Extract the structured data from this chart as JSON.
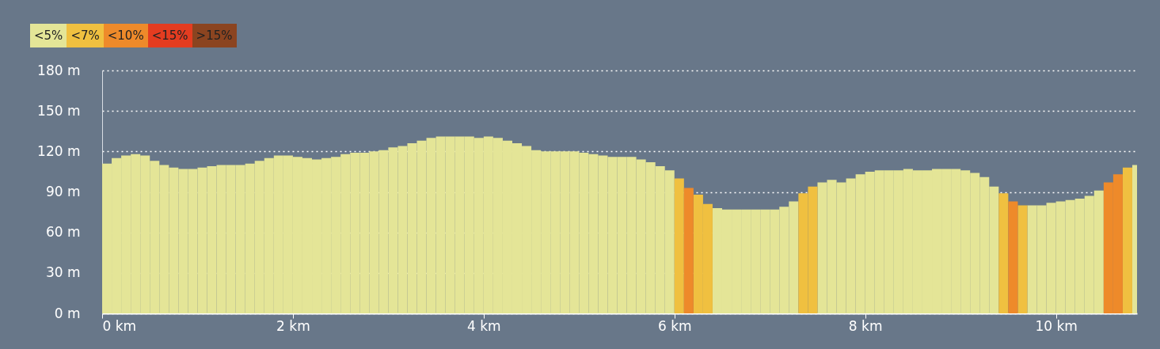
{
  "chart_data": {
    "type": "bar",
    "legend": "top left",
    "grid": "y",
    "xlim": [
      0,
      10.85
    ],
    "xticks": [
      {
        "value": 0,
        "label": "0 km"
      },
      {
        "value": 2,
        "label": "2 km"
      },
      {
        "value": 4,
        "label": "4 km"
      },
      {
        "value": 6,
        "label": "6 km"
      },
      {
        "value": 8,
        "label": "8 km"
      },
      {
        "value": 10,
        "label": "10 km"
      }
    ],
    "ylim": [
      0,
      180
    ],
    "yticks": [
      {
        "value": 0,
        "label": "0 m"
      },
      {
        "value": 30,
        "label": "30 m"
      },
      {
        "value": 60,
        "label": "60 m"
      },
      {
        "value": 90,
        "label": "90 m"
      },
      {
        "value": 120,
        "label": "120 m"
      },
      {
        "value": 150,
        "label": "150 m"
      },
      {
        "value": 180,
        "label": "180 m"
      }
    ],
    "series": [
      {
        "name": "<5%",
        "color": "#e4e597",
        "x": [
          0,
          0.1,
          0.2,
          0.3,
          0.4,
          0.5,
          0.6,
          0.7,
          0.8,
          0.9,
          1.0,
          1.1,
          1.2,
          1.3,
          1.4,
          1.5,
          1.6,
          1.7,
          1.8,
          1.9,
          2.0,
          2.1,
          2.2,
          2.3,
          2.4,
          2.5,
          2.6,
          2.7,
          2.8,
          2.9,
          3.0,
          3.1,
          3.2,
          3.3,
          3.4,
          3.5,
          3.6,
          3.7,
          3.8,
          3.9,
          4.0,
          4.1,
          4.2,
          4.3,
          4.4,
          4.5,
          4.6,
          4.7,
          4.8,
          4.9,
          5.0,
          5.1,
          5.2,
          5.3,
          5.4,
          5.5,
          5.6,
          5.7,
          5.8,
          5.9,
          6.4,
          6.5,
          6.6,
          6.7,
          6.8,
          6.9,
          7.0,
          7.1,
          7.2,
          7.5,
          7.6,
          7.7,
          7.8,
          7.9,
          8.0,
          8.1,
          8.2,
          8.3,
          8.4,
          8.5,
          8.6,
          8.7,
          8.8,
          8.9,
          9.0,
          9.1,
          9.2,
          9.3,
          9.7,
          9.8,
          9.9,
          10.0,
          10.1,
          10.2,
          10.3,
          10.4,
          10.8
        ],
        "values": [
          111,
          115,
          117,
          118,
          117,
          113,
          110,
          108,
          107,
          107,
          108,
          109,
          110,
          110,
          110,
          111,
          113,
          115,
          117,
          117,
          116,
          115,
          114,
          115,
          116,
          118,
          119,
          119,
          120,
          121,
          123,
          124,
          126,
          128,
          130,
          131,
          131,
          131,
          131,
          130,
          131,
          130,
          128,
          126,
          124,
          121,
          120,
          120,
          120,
          120,
          119,
          118,
          117,
          116,
          116,
          116,
          114,
          112,
          109,
          106,
          78,
          77,
          77,
          77,
          77,
          77,
          77,
          79,
          83,
          97,
          99,
          97,
          100,
          103,
          105,
          106,
          106,
          106,
          107,
          106,
          106,
          107,
          107,
          107,
          106,
          104,
          101,
          94,
          80,
          80,
          82,
          83,
          84,
          85,
          87,
          91,
          110
        ]
      },
      {
        "name": "<7%",
        "color": "#f0c040",
        "x": [
          6.0,
          6.2,
          6.3,
          7.3,
          7.4,
          9.4,
          9.6,
          10.7
        ],
        "values": [
          100,
          88,
          81,
          89,
          94,
          89,
          80,
          108
        ]
      },
      {
        "name": "<10%",
        "color": "#ee8a2a",
        "x": [
          6.1,
          9.5,
          10.5,
          10.6
        ],
        "values": [
          93,
          83,
          97,
          103
        ]
      },
      {
        "name": "<15%",
        "color": "#e43c20"
      },
      {
        "name": ">15%",
        "color": "#8b4420"
      }
    ]
  }
}
